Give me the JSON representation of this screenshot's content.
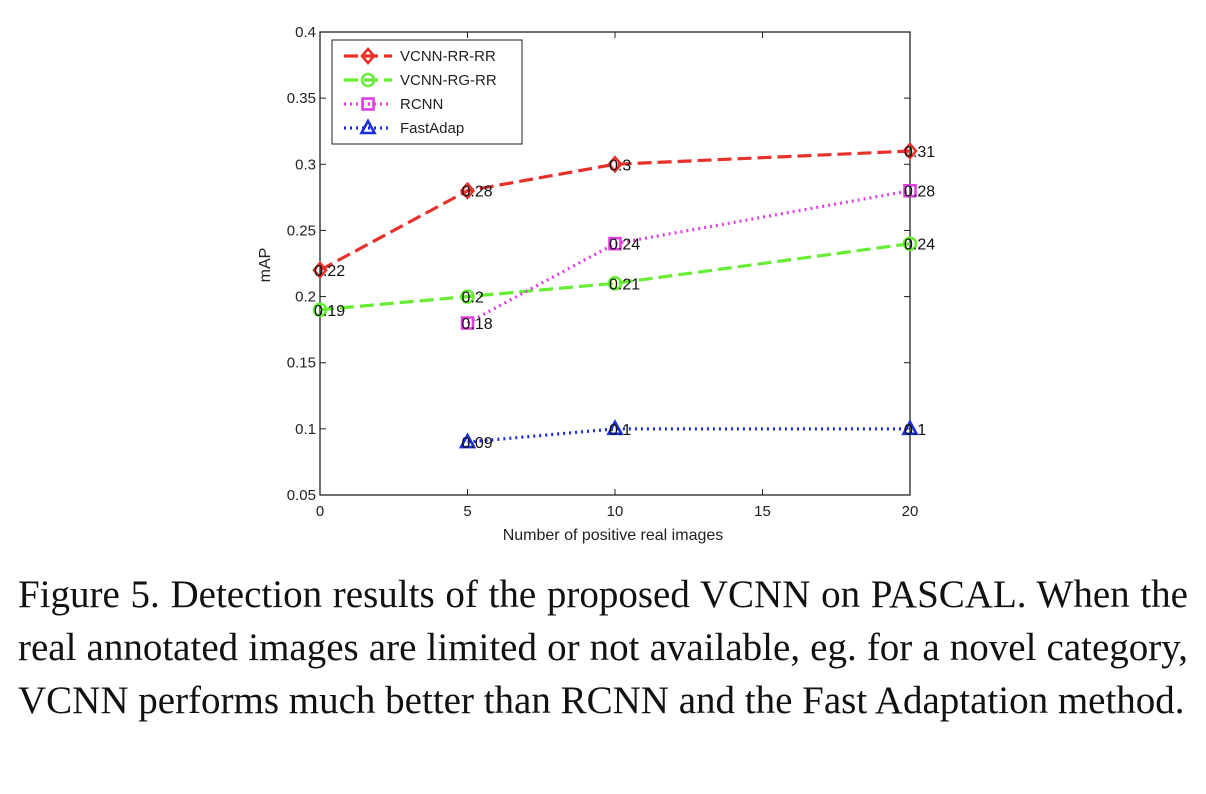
{
  "chart_data": {
    "type": "line",
    "title": "",
    "xlabel": "Number of positive real images",
    "ylabel": "mAP",
    "xlim": [
      0,
      20
    ],
    "ylim": [
      0.05,
      0.4
    ],
    "xticks": [
      0,
      5,
      10,
      15,
      20
    ],
    "xtick_labels": [
      "0",
      "5",
      "10",
      "15",
      "20"
    ],
    "yticks": [
      0.05,
      0.1,
      0.15,
      0.2,
      0.25,
      0.3,
      0.35,
      0.4
    ],
    "ytick_labels": [
      "0.05",
      "0.1",
      "0.15",
      "0.2",
      "0.25",
      "0.3",
      "0.35",
      "0.4"
    ],
    "grid": false,
    "legend_position": "top-left",
    "series": [
      {
        "name": "VCNN-RR-RR",
        "color": "#e8302a",
        "line_style": "dashed",
        "marker": "diamond",
        "x": [
          0,
          5,
          10,
          20
        ],
        "y": [
          0.22,
          0.28,
          0.3,
          0.31
        ],
        "labels": [
          "0.22",
          "0.28",
          "0.3",
          "0.31"
        ]
      },
      {
        "name": "VCNN-RG-RR",
        "color": "#66ee33",
        "line_style": "dashed",
        "marker": "circle",
        "x": [
          0,
          5,
          10,
          20
        ],
        "y": [
          0.19,
          0.2,
          0.21,
          0.24
        ],
        "labels": [
          "0.19",
          "0.2",
          "0.21",
          "0.24"
        ]
      },
      {
        "name": "RCNN",
        "color": "#e040e0",
        "line_style": "dotted",
        "marker": "square",
        "x": [
          5,
          10,
          20
        ],
        "y": [
          0.18,
          0.24,
          0.28
        ],
        "labels": [
          "0.18",
          "0.24",
          "0.28"
        ]
      },
      {
        "name": "FastAdap",
        "color": "#1a2ee0",
        "line_style": "dotted",
        "marker": "triangle",
        "x": [
          5,
          10,
          20
        ],
        "y": [
          0.09,
          0.1,
          0.1
        ],
        "labels": [
          "0.09",
          "0.1",
          "0.1"
        ]
      }
    ]
  },
  "caption": "Figure 5. Detection results of the proposed VCNN on PASCAL. When the real annotated images are limited or not available, eg. for a novel category, VCNN performs much better than RCNN and the Fast Adaptation method."
}
